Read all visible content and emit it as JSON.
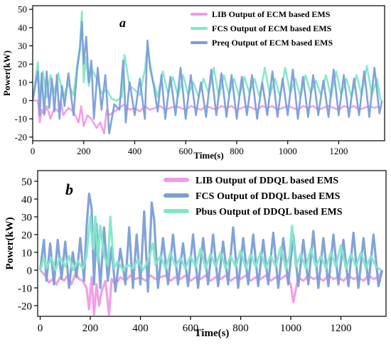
{
  "chart_data": [
    {
      "type": "line",
      "panel_label": "a",
      "xlabel": "Time(s)",
      "ylabel": "Power(kW)",
      "xlim": [
        0,
        1380
      ],
      "ylim": [
        -22,
        52
      ],
      "xticks": [
        0,
        200,
        400,
        600,
        800,
        1000,
        1200
      ],
      "yticks": [
        -20,
        -10,
        0,
        10,
        20,
        30,
        40,
        50
      ],
      "legend_position": "top-right",
      "grid": false,
      "series": [
        {
          "name": "LIB Output of ECM based EMS",
          "color": "#f09ae6",
          "x": [
            0,
            20,
            28,
            35,
            45,
            55,
            70,
            85,
            100,
            110,
            120,
            140,
            160,
            180,
            190,
            200,
            215,
            230,
            250,
            265,
            280,
            290,
            300,
            320,
            340,
            360,
            380,
            400,
            420,
            440,
            460,
            480,
            500,
            520,
            540,
            560,
            580,
            600,
            620,
            640,
            660,
            680,
            700,
            720,
            740,
            760,
            780,
            800,
            820,
            840,
            860,
            880,
            900,
            920,
            940,
            960,
            980,
            1000,
            1020,
            1040,
            1060,
            1080,
            1100,
            1120,
            1140,
            1160,
            1180,
            1200,
            1220,
            1240,
            1260,
            1280,
            1300,
            1320,
            1340,
            1360
          ],
          "y": [
            0,
            0,
            -12,
            -5,
            -8,
            -3,
            -10,
            -4,
            -6,
            0,
            -8,
            -4,
            -6,
            -12,
            -3,
            -14,
            -8,
            -10,
            -15,
            -12,
            -18,
            -5,
            -8,
            -6,
            -4,
            -2,
            -5,
            -4,
            -6,
            -3,
            -5,
            -4,
            -3,
            -5,
            -4,
            -3,
            -4,
            -5,
            -3,
            -4,
            -5,
            -3,
            -4,
            -5,
            -3,
            -4,
            -3,
            -5,
            -4,
            -3,
            -4,
            -5,
            -3,
            -4,
            -3,
            -5,
            -4,
            -3,
            -4,
            -5,
            -3,
            -4,
            -3,
            -5,
            -4,
            -3,
            -4,
            -5,
            -3,
            -4,
            -3,
            -5,
            -4,
            -3,
            -4,
            -3
          ]
        },
        {
          "name": "FCS Output of ECM based EMS",
          "color": "#7ee8c8",
          "x": [
            0,
            20,
            28,
            40,
            55,
            70,
            85,
            100,
            120,
            140,
            160,
            175,
            185,
            193,
            200,
            210,
            220,
            230,
            250,
            270,
            290,
            310,
            330,
            350,
            360,
            380,
            400,
            420,
            440,
            450,
            470,
            490,
            510,
            530,
            550,
            570,
            590,
            610,
            630,
            650,
            670,
            690,
            710,
            730,
            750,
            770,
            790,
            810,
            830,
            850,
            870,
            890,
            910,
            930,
            950,
            970,
            990,
            1010,
            1030,
            1050,
            1070,
            1090,
            1110,
            1130,
            1150,
            1170,
            1190,
            1210,
            1230,
            1250,
            1270,
            1290,
            1310,
            1330,
            1350,
            1365
          ],
          "y": [
            0,
            21,
            3,
            16,
            2,
            14,
            4,
            15,
            2,
            9,
            3,
            20,
            30,
            49,
            10,
            24,
            8,
            18,
            12,
            4,
            6,
            1,
            0,
            2,
            25,
            8,
            6,
            3,
            17,
            30,
            12,
            2,
            16,
            4,
            13,
            2,
            14,
            3,
            10,
            2,
            12,
            4,
            18,
            2,
            14,
            3,
            12,
            2,
            13,
            4,
            12,
            2,
            18,
            3,
            12,
            2,
            18,
            4,
            12,
            2,
            14,
            4,
            11,
            3,
            14,
            2,
            16,
            3,
            12,
            2,
            14,
            3,
            19,
            3,
            12,
            0
          ]
        },
        {
          "name": "Preq Output of ECM based EMS",
          "color": "#7b9ed6",
          "x": [
            0,
            20,
            28,
            35,
            45,
            55,
            65,
            75,
            85,
            95,
            105,
            115,
            125,
            140,
            160,
            175,
            185,
            193,
            200,
            210,
            220,
            230,
            240,
            255,
            270,
            285,
            300,
            320,
            340,
            355,
            365,
            380,
            400,
            420,
            440,
            450,
            460,
            475,
            490,
            505,
            520,
            540,
            560,
            580,
            600,
            620,
            640,
            660,
            680,
            700,
            720,
            740,
            760,
            780,
            800,
            820,
            840,
            860,
            880,
            900,
            920,
            940,
            960,
            980,
            1000,
            1020,
            1040,
            1060,
            1080,
            1100,
            1120,
            1140,
            1160,
            1180,
            1200,
            1220,
            1240,
            1260,
            1280,
            1300,
            1320,
            1340,
            1360,
            1370
          ],
          "y": [
            0,
            16,
            -8,
            15,
            -7,
            16,
            -4,
            12,
            -6,
            14,
            -10,
            8,
            -3,
            15,
            -8,
            18,
            28,
            43,
            20,
            35,
            10,
            22,
            -10,
            18,
            -5,
            14,
            -18,
            -2,
            -5,
            22,
            -12,
            10,
            -8,
            12,
            -10,
            33,
            18,
            8,
            -6,
            14,
            -10,
            13,
            -8,
            18,
            -10,
            14,
            -8,
            10,
            -9,
            17,
            -8,
            15,
            -9,
            14,
            -10,
            13,
            -8,
            14,
            -10,
            10,
            -8,
            16,
            -9,
            12,
            -8,
            17,
            -10,
            13,
            -9,
            14,
            -8,
            11,
            -9,
            17,
            -8,
            14,
            -9,
            12,
            -8,
            16,
            -9,
            18,
            -7,
            0
          ]
        }
      ]
    },
    {
      "type": "line",
      "panel_label": "b",
      "xlabel": "Time(s)",
      "ylabel": "Power(kW)",
      "xlim": [
        -10,
        1380
      ],
      "ylim": [
        -26,
        56
      ],
      "xticks": [
        0,
        200,
        400,
        600,
        800,
        1000,
        1200
      ],
      "yticks": [
        -20,
        -10,
        0,
        10,
        20,
        30,
        40,
        50
      ],
      "legend_position": "top-right",
      "grid": false,
      "series": [
        {
          "name": "LIB Output of DDQL based EMS",
          "color": "#f09ae6",
          "x": [
            0,
            20,
            35,
            50,
            65,
            80,
            95,
            110,
            125,
            140,
            155,
            170,
            185,
            195,
            205,
            215,
            225,
            235,
            245,
            260,
            275,
            285,
            300,
            320,
            340,
            360,
            380,
            400,
            420,
            440,
            460,
            480,
            500,
            520,
            540,
            560,
            580,
            600,
            620,
            640,
            660,
            680,
            700,
            720,
            740,
            760,
            780,
            800,
            820,
            840,
            860,
            880,
            900,
            920,
            940,
            960,
            980,
            1000,
            1010,
            1030,
            1050,
            1070,
            1090,
            1110,
            1130,
            1150,
            1170,
            1190,
            1210,
            1230,
            1250,
            1270,
            1290,
            1310,
            1330,
            1350,
            1365
          ],
          "y": [
            0,
            -3,
            -7,
            -5,
            -8,
            -4,
            -6,
            -3,
            -8,
            -2,
            -5,
            -6,
            -10,
            -22,
            -4,
            -25,
            -8,
            -20,
            -12,
            -6,
            -25,
            -5,
            -8,
            -4,
            -6,
            -3,
            -5,
            -4,
            -6,
            -3,
            -5,
            -4,
            -3,
            -6,
            -4,
            -5,
            -3,
            -6,
            -4,
            -5,
            -3,
            -6,
            -4,
            -5,
            -3,
            -6,
            -4,
            -5,
            -3,
            -6,
            -4,
            -5,
            -3,
            -6,
            -4,
            -5,
            -3,
            -8,
            -18,
            -4,
            -6,
            -3,
            -5,
            -4,
            -6,
            -3,
            -5,
            -4,
            -6,
            -3,
            -5,
            -4,
            -6,
            -3,
            -5,
            -4,
            0
          ]
        },
        {
          "name": "FCS Output of DDQL based EMS",
          "color": "#7b9ed6",
          "x": [
            0,
            15,
            25,
            40,
            55,
            70,
            85,
            100,
            115,
            130,
            145,
            160,
            175,
            185,
            195,
            205,
            215,
            225,
            240,
            255,
            270,
            285,
            300,
            320,
            340,
            355,
            370,
            385,
            400,
            415,
            430,
            445,
            455,
            470,
            490,
            510,
            530,
            550,
            570,
            590,
            610,
            630,
            650,
            670,
            690,
            710,
            730,
            750,
            770,
            790,
            810,
            830,
            850,
            870,
            890,
            910,
            930,
            950,
            970,
            990,
            1010,
            1030,
            1050,
            1070,
            1090,
            1110,
            1130,
            1150,
            1170,
            1190,
            1210,
            1230,
            1250,
            1270,
            1290,
            1310,
            1330,
            1350,
            1365
          ],
          "y": [
            0,
            17,
            -6,
            15,
            -8,
            17,
            -5,
            16,
            -10,
            10,
            -4,
            18,
            -6,
            24,
            43,
            35,
            -8,
            26,
            -10,
            24,
            -6,
            13,
            -12,
            12,
            -8,
            24,
            -10,
            20,
            -8,
            33,
            -12,
            38,
            28,
            -10,
            18,
            -8,
            20,
            -8,
            15,
            -9,
            20,
            -10,
            18,
            -8,
            20,
            -9,
            16,
            -8,
            24,
            -10,
            18,
            -8,
            20,
            -9,
            17,
            -8,
            21,
            -10,
            18,
            -8,
            20,
            -9,
            17,
            -8,
            22,
            -10,
            18,
            -9,
            20,
            -8,
            17,
            -9,
            21,
            -10,
            18,
            -8,
            20,
            -9,
            0
          ]
        },
        {
          "name": "Pbus Output of DDQL based EMS",
          "color": "#7ee8c8",
          "x": [
            0,
            15,
            25,
            45,
            60,
            80,
            100,
            115,
            130,
            150,
            170,
            185,
            200,
            210,
            220,
            230,
            240,
            255,
            270,
            280,
            295,
            310,
            330,
            350,
            370,
            390,
            410,
            430,
            450,
            460,
            480,
            500,
            520,
            540,
            560,
            580,
            600,
            620,
            640,
            660,
            680,
            700,
            720,
            740,
            760,
            780,
            800,
            820,
            840,
            860,
            880,
            900,
            920,
            940,
            960,
            980,
            995,
            1005,
            1020,
            1040,
            1060,
            1080,
            1100,
            1120,
            1140,
            1160,
            1180,
            1200,
            1220,
            1240,
            1260,
            1280,
            1300,
            1320,
            1340,
            1360
          ],
          "y": [
            0,
            7,
            1,
            7,
            0,
            7,
            2,
            8,
            0,
            5,
            1,
            8,
            30,
            12,
            30,
            5,
            25,
            8,
            3,
            30,
            1,
            5,
            0,
            3,
            1,
            6,
            0,
            5,
            15,
            3,
            8,
            1,
            10,
            2,
            7,
            1,
            8,
            2,
            12,
            1,
            9,
            2,
            10,
            1,
            8,
            2,
            11,
            1,
            9,
            2,
            10,
            1,
            8,
            2,
            13,
            1,
            8,
            25,
            2,
            9,
            1,
            12,
            2,
            8,
            1,
            10,
            2,
            14,
            1,
            9,
            2,
            10,
            1,
            8,
            2,
            0
          ]
        }
      ]
    }
  ]
}
